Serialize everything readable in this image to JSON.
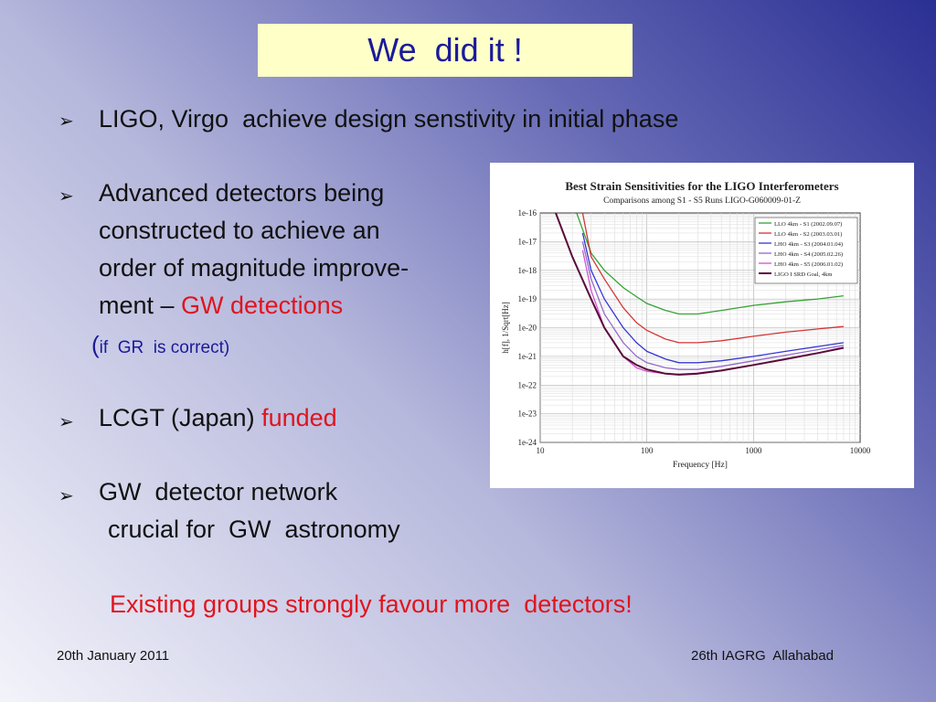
{
  "slide": {
    "title": "We  did it !",
    "bullet_marker": "➢",
    "bullets": [
      {
        "text": "LIGO, Virgo  achieve design senstivity in initial phase"
      },
      {
        "lines": [
          "Advanced detectors being",
          "constructed to achieve an",
          "order of magnitude improve-",
          "ment – "
        ],
        "highlight": "GW detections"
      },
      {
        "lcgt": "LCGT (Japan) ",
        "funded": "funded"
      },
      {
        "lines": [
          "GW  detector network",
          "crucial for  GW  astronomy"
        ]
      }
    ],
    "note": {
      "open_paren": "(",
      "text": "if  GR  is correct)"
    },
    "conclusion": "Existing groups strongly favour more  detectors!",
    "footer_left": "20th January 2011",
    "footer_right": "26th IAGRG  Allahabad"
  },
  "chart_data": {
    "type": "line",
    "title": "Best Strain Sensitivities for the LIGO Interferometers",
    "subtitle": "Comparisons among S1 - S5 Runs      LIGO-G060009-01-Z",
    "xlabel": "Frequency [Hz]",
    "ylabel": "h[f], 1/Sqrt[Hz]",
    "x_scale": "log",
    "y_scale": "log",
    "xlim": [
      10,
      10000
    ],
    "ylim": [
      1e-24,
      1e-16
    ],
    "x_ticks": [
      "10",
      "100",
      "1000",
      "10000"
    ],
    "y_ticks": [
      "1e-16",
      "1e-17",
      "1e-18",
      "1e-19",
      "1e-20",
      "1e-21",
      "1e-22",
      "1e-23",
      "1e-24"
    ],
    "grid": true,
    "legend_position": "top-right",
    "series": [
      {
        "name": "LLO 4km - S1 (2002.09.07)",
        "color": "#1f9a1f",
        "x": [
          22,
          30,
          40,
          60,
          80,
          100,
          150,
          200,
          300,
          500,
          1000,
          2000,
          4000,
          7000
        ],
        "y": [
          1e-16,
          4e-18,
          1e-18,
          2.5e-19,
          1.2e-19,
          7e-20,
          4e-20,
          3e-20,
          3e-20,
          4e-20,
          6e-20,
          8e-20,
          1e-19,
          1.3e-19
        ]
      },
      {
        "name": "LLO 4km - S2 (2003.03.01)",
        "color": "#d22020",
        "x": [
          25,
          30,
          40,
          60,
          80,
          100,
          150,
          200,
          300,
          500,
          1000,
          2000,
          4000,
          7000
        ],
        "y": [
          1e-16,
          3e-18,
          5e-19,
          5e-20,
          1.5e-20,
          8e-21,
          4e-21,
          3e-21,
          3e-21,
          3.5e-21,
          5e-21,
          7e-21,
          9e-21,
          1.1e-20
        ]
      },
      {
        "name": "LHO 4km - S3 (2004.01.04)",
        "color": "#2020d0",
        "x": [
          25,
          30,
          40,
          60,
          80,
          100,
          150,
          200,
          300,
          500,
          1000,
          2000,
          4000,
          7000
        ],
        "y": [
          2e-17,
          1e-18,
          1e-19,
          1e-20,
          3e-21,
          1.5e-21,
          8e-22,
          6e-22,
          6e-22,
          7e-22,
          1e-21,
          1.5e-21,
          2.2e-21,
          3e-21
        ]
      },
      {
        "name": "LHO 4km - S4 (2005.02.26)",
        "color": "#8a5ac8",
        "x": [
          25,
          30,
          40,
          60,
          80,
          100,
          150,
          200,
          300,
          500,
          1000,
          2000,
          4000,
          7000
        ],
        "y": [
          1e-17,
          5e-19,
          3e-20,
          3e-21,
          1e-21,
          6e-22,
          4e-22,
          3.5e-22,
          3.5e-22,
          4.5e-22,
          7e-22,
          1.1e-21,
          1.7e-21,
          2.4e-21
        ]
      },
      {
        "name": "LHO 4km - S5 (2006.01.02)",
        "color": "#d040d0",
        "x": [
          25,
          30,
          40,
          60,
          80,
          100,
          150,
          200,
          300,
          500,
          1000,
          2000,
          4000,
          7000
        ],
        "y": [
          5e-18,
          2e-19,
          1e-20,
          1e-21,
          4e-22,
          3e-22,
          2.5e-22,
          2.4e-22,
          2.6e-22,
          3.2e-22,
          5e-22,
          8e-22,
          1.3e-21,
          1.9e-21
        ]
      },
      {
        "name": "LIGO I SRD Goal, 4km",
        "color": "#5a0a3a",
        "x": [
          14,
          20,
          30,
          40,
          60,
          80,
          100,
          150,
          200,
          300,
          500,
          1000,
          2000,
          4000,
          7000
        ],
        "y": [
          1e-16,
          3e-18,
          1e-19,
          1e-20,
          1e-21,
          5e-22,
          3.5e-22,
          2.5e-22,
          2.3e-22,
          2.5e-22,
          3.2e-22,
          5e-22,
          8e-22,
          1.3e-21,
          2e-21
        ]
      }
    ]
  }
}
